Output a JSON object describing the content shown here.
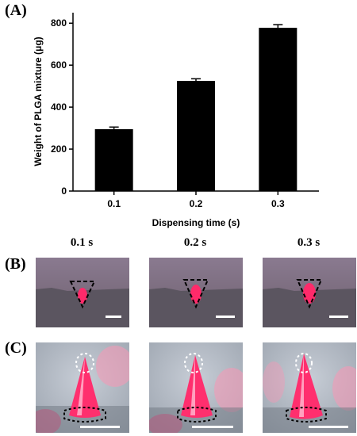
{
  "panels": {
    "a_label": "(A)",
    "b_label": "(B)",
    "c_label": "(C)"
  },
  "photo_titles": [
    "0.1 s",
    "0.2 s",
    "0.3 s"
  ],
  "chart_data": {
    "type": "bar",
    "categories": [
      "0.1",
      "0.2",
      "0.3"
    ],
    "values": [
      295,
      525,
      778
    ],
    "errors": [
      10,
      10,
      15
    ],
    "xlabel": "Dispensing time (s)",
    "ylabel": "Weight of PLGA mixture (μg)",
    "ylim": [
      0,
      850
    ],
    "yticks": [
      0,
      200,
      400,
      600,
      800
    ],
    "bar_color": "#000000",
    "grid": false
  }
}
